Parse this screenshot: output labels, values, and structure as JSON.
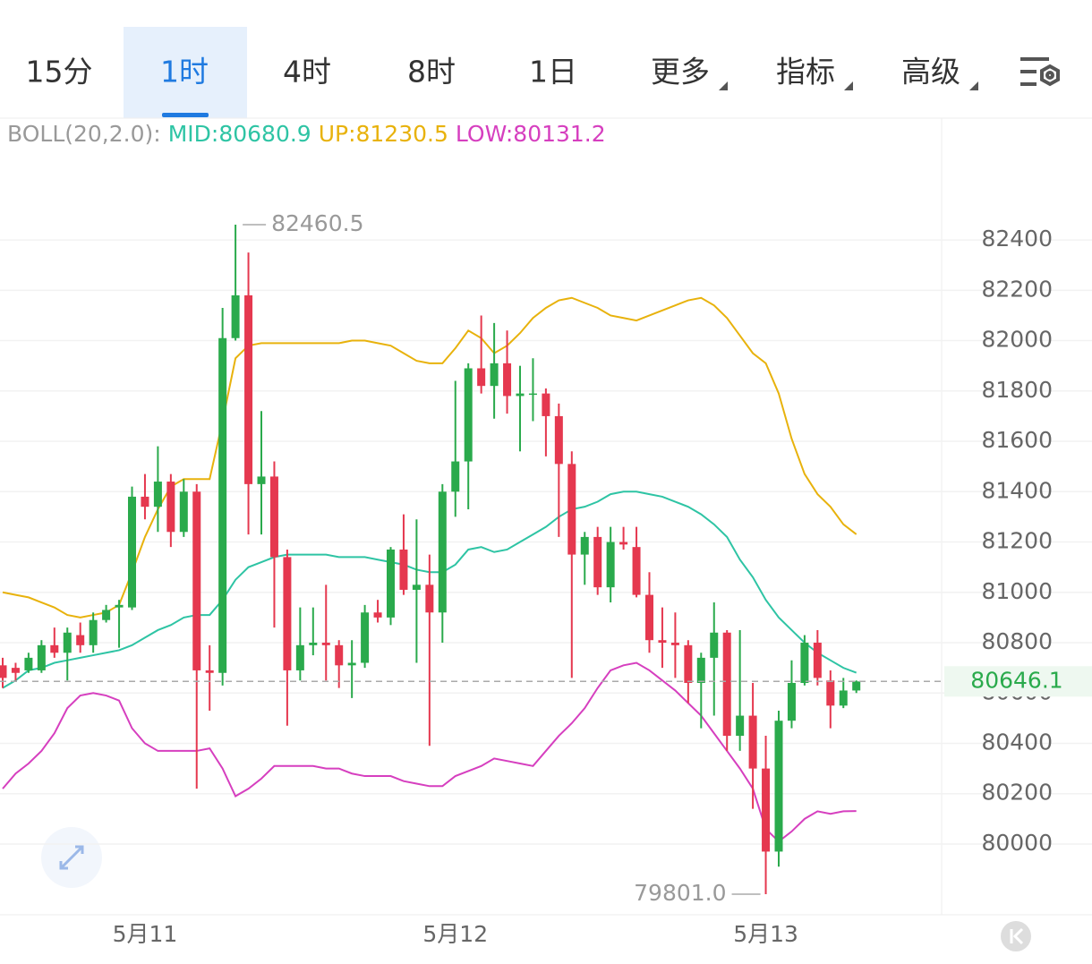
{
  "tabs": [
    "15分",
    "1时",
    "4时",
    "8时",
    "1日",
    "更多",
    "指标",
    "高级"
  ],
  "selected_tab": 1,
  "chart_data": {
    "type": "candlestick",
    "indicator": "BOLL(20,2.0):",
    "up_color": "#2aaa4c",
    "down_color": "#e5384f",
    "categories": [
      null,
      null,
      null,
      null,
      null,
      null,
      null,
      null,
      null,
      null,
      null,
      "5月11",
      null,
      null,
      null,
      null,
      null,
      null,
      null,
      null,
      null,
      null,
      null,
      null,
      null,
      null,
      null,
      null,
      null,
      null,
      null,
      null,
      null,
      null,
      null,
      "5月12",
      null,
      null,
      null,
      null,
      null,
      null,
      null,
      null,
      null,
      null,
      null,
      null,
      null,
      null,
      null,
      null,
      null,
      null,
      null,
      null,
      null,
      null,
      null,
      "5月13",
      null,
      null,
      null,
      null,
      null,
      null,
      null
    ],
    "open": [
      80710,
      80700,
      80690,
      80690,
      80790,
      80760,
      80830,
      80790,
      80890,
      80940,
      80940,
      81380,
      81340,
      81440,
      81240,
      81400,
      80690,
      80680,
      82010,
      82180,
      81430,
      81460,
      81140,
      80690,
      80790,
      80800,
      80790,
      80710,
      80720,
      80920,
      80900,
      81170,
      81010,
      81030,
      80920,
      81400,
      81520,
      81890,
      81820,
      81910,
      81780,
      81790,
      81790,
      81700,
      81510,
      81150,
      81220,
      81020,
      81200,
      81180,
      80990,
      80810,
      80800,
      80790,
      80640,
      80740,
      80840,
      80430,
      80510,
      80300,
      79970,
      80490,
      80640,
      80800,
      80650,
      80550,
      80610
    ],
    "high": [
      80740,
      80720,
      80760,
      80810,
      80860,
      80860,
      80880,
      80920,
      80950,
      80970,
      81420,
      81470,
      81580,
      81470,
      81450,
      81430,
      80790,
      82130,
      82460.5,
      82350,
      81720,
      81520,
      81170,
      80940,
      80940,
      81030,
      80810,
      80810,
      80950,
      80970,
      81180,
      81310,
      81290,
      81150,
      81430,
      81840,
      81910,
      82100,
      82070,
      82040,
      81900,
      81930,
      81810,
      81750,
      81560,
      81240,
      81260,
      81260,
      81260,
      81260,
      81080,
      80940,
      80920,
      80810,
      80760,
      80960,
      80850,
      80850,
      80640,
      80430,
      80530,
      80730,
      80830,
      80850,
      80690,
      80660,
      80650
    ],
    "low": [
      80620,
      80650,
      80680,
      80680,
      80740,
      80650,
      80760,
      80760,
      80880,
      80780,
      80930,
      81290,
      81240,
      81180,
      81220,
      80220,
      80530,
      80630,
      82000,
      81230,
      81230,
      80860,
      80470,
      80650,
      80750,
      80650,
      80620,
      80580,
      80700,
      80880,
      80870,
      80990,
      80720,
      80390,
      80800,
      81300,
      81330,
      81790,
      81690,
      81710,
      81560,
      81680,
      81540,
      81220,
      80660,
      81030,
      80990,
      80960,
      81170,
      80980,
      80760,
      80700,
      80660,
      80560,
      80460,
      80510,
      80370,
      80370,
      80140,
      79801,
      79910,
      80460,
      80630,
      80630,
      80460,
      80540,
      80600
    ],
    "close": [
      80660,
      80680,
      80740,
      80790,
      80760,
      80840,
      80790,
      80890,
      80930,
      80950,
      81380,
      81340,
      81440,
      81240,
      81400,
      80690,
      80680,
      82010,
      82180,
      81430,
      81460,
      81140,
      80690,
      80790,
      80800,
      80790,
      80710,
      80720,
      80920,
      80900,
      81170,
      81010,
      81030,
      80920,
      81400,
      81520,
      81890,
      81820,
      81910,
      81780,
      81790,
      81790,
      81700,
      81510,
      81150,
      81220,
      81020,
      81200,
      81190,
      80990,
      80810,
      80800,
      80790,
      80640,
      80740,
      80840,
      80430,
      80510,
      80300,
      79970,
      80490,
      80640,
      80800,
      80660,
      80550,
      80610,
      80646.1
    ],
    "series": [
      {
        "name": "MID:80680.9",
        "color": "#2ec4a4",
        "values": [
          80620,
          80650,
          80690,
          80700,
          80720,
          80730,
          80740,
          80750,
          80760,
          80770,
          80790,
          80820,
          80850,
          80870,
          80900,
          80910,
          80910,
          80970,
          81050,
          81100,
          81120,
          81140,
          81150,
          81150,
          81150,
          81150,
          81140,
          81140,
          81140,
          81130,
          81120,
          81110,
          81090,
          81080,
          81080,
          81110,
          81170,
          81180,
          81160,
          81170,
          81200,
          81230,
          81260,
          81300,
          81330,
          81340,
          81360,
          81390,
          81400,
          81400,
          81390,
          81380,
          81360,
          81340,
          81310,
          81270,
          81220,
          81130,
          81060,
          80970,
          80900,
          80850,
          80800,
          80760,
          80730,
          80700,
          80680.9
        ]
      },
      {
        "name": "UP:81230.5",
        "color": "#e8b20c",
        "values": [
          81000,
          80990,
          80980,
          80960,
          80940,
          80910,
          80900,
          80910,
          80920,
          80950,
          81080,
          81220,
          81330,
          81420,
          81450,
          81450,
          81450,
          81680,
          81930,
          81980,
          81990,
          81990,
          81990,
          81990,
          81990,
          81990,
          81990,
          82000,
          82000,
          81990,
          81980,
          81950,
          81920,
          81910,
          81910,
          81970,
          82040,
          82010,
          81950,
          81980,
          82030,
          82090,
          82130,
          82160,
          82170,
          82150,
          82130,
          82100,
          82090,
          82080,
          82100,
          82120,
          82140,
          82160,
          82170,
          82140,
          82090,
          82020,
          81950,
          81910,
          81790,
          81610,
          81470,
          81390,
          81340,
          81270,
          81230.5
        ]
      },
      {
        "name": "LOW:80131.2",
        "color": "#d63fbf",
        "values": [
          80220,
          80280,
          80320,
          80370,
          80440,
          80540,
          80590,
          80600,
          80590,
          80570,
          80460,
          80400,
          80370,
          80370,
          80370,
          80370,
          80380,
          80300,
          80190,
          80220,
          80260,
          80310,
          80310,
          80310,
          80310,
          80300,
          80300,
          80280,
          80270,
          80270,
          80270,
          80250,
          80240,
          80230,
          80230,
          80270,
          80290,
          80310,
          80340,
          80330,
          80320,
          80310,
          80370,
          80430,
          80480,
          80540,
          80620,
          80690,
          80710,
          80720,
          80690,
          80650,
          80610,
          80560,
          80510,
          80440,
          80370,
          80300,
          80220,
          80060,
          80010,
          80050,
          80100,
          80130,
          80120,
          80130,
          80131.2
        ]
      }
    ],
    "ylim": [
      79719,
      82891
    ],
    "yticks": [
      80000,
      80200,
      80400,
      80600,
      80800,
      81000,
      81200,
      81400,
      81600,
      81800,
      82000,
      82200,
      82400
    ],
    "grid": true,
    "price_line": {
      "value": 80646.1,
      "label": "80646.1",
      "color": "#2aaa4c"
    },
    "annotations": [
      {
        "value": 82460.5,
        "label": "82460.5",
        "index": 18
      },
      {
        "value": 79801,
        "label": "79801.0",
        "index": 59
      }
    ]
  }
}
